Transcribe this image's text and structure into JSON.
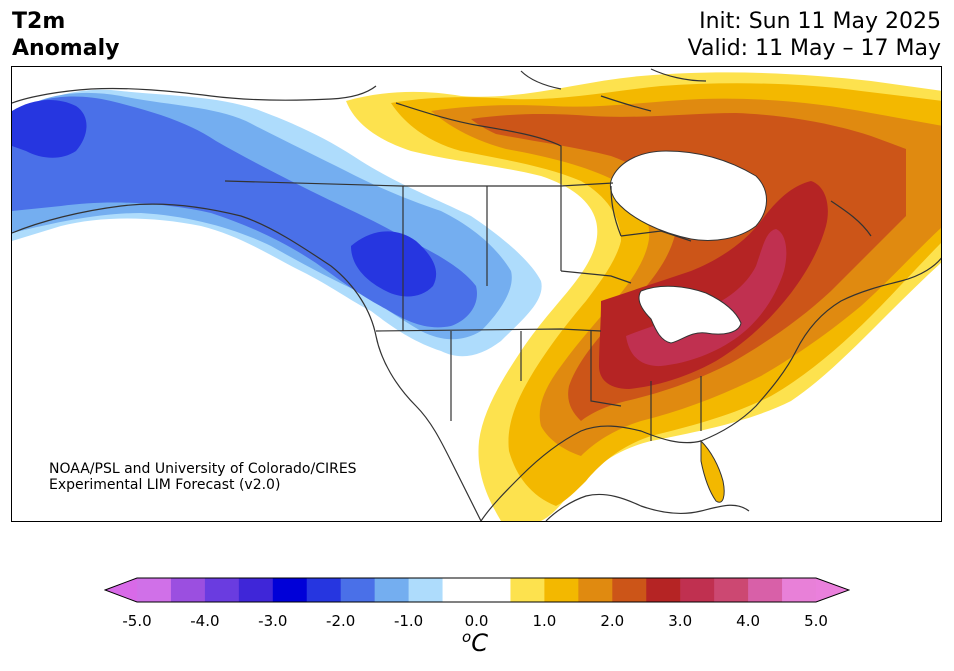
{
  "title": {
    "line1": "T2m",
    "line2": "Anomaly"
  },
  "dates": {
    "init": "Init: Sun 11 May 2025",
    "valid": "Valid: 11 May – 17 May"
  },
  "credit": {
    "line1": "NOAA/PSL and University of Colorado/CIRES",
    "line2": "Experimental LIM Forecast (v2.0)"
  },
  "colorbar": {
    "ticks": [
      "-5.0",
      "-4.0",
      "-3.0",
      "-2.0",
      "-1.0",
      "0.0",
      "1.0",
      "2.0",
      "3.0",
      "4.0",
      "5.0"
    ],
    "unit": "C",
    "unit_prefix": "o",
    "colors": [
      "#d070e8",
      "#9b4fe0",
      "#6a3ce0",
      "#3f26d8",
      "#0000d8",
      "#2636e0",
      "#4a70e8",
      "#74aef0",
      "#aedcfc",
      "#ffffff",
      "#ffffff",
      "#fde24e",
      "#f3b800",
      "#e08a10",
      "#cc5518",
      "#b52424",
      "#c03050",
      "#cc4872",
      "#d860a8",
      "#e880d8"
    ],
    "min_color": "#d86ae8",
    "max_color": "#ea80dc"
  }
}
